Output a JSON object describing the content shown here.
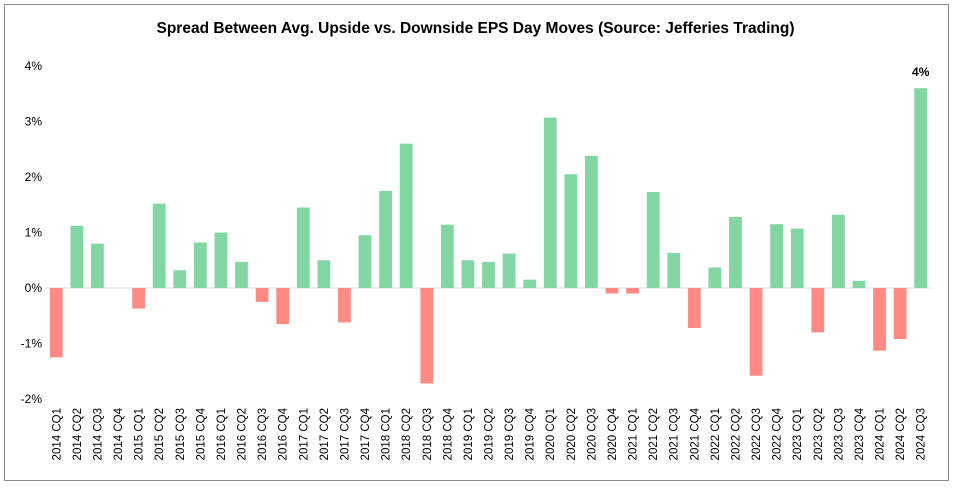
{
  "chart_data": {
    "type": "bar",
    "title": "Spread Between Avg. Upside vs. Downside EPS Day Moves (Source: Jefferies Trading)",
    "xlabel": "",
    "ylabel": "",
    "ylim": [
      -2,
      4
    ],
    "yticks": [
      -2,
      -1,
      0,
      1,
      2,
      3,
      4
    ],
    "ytick_labels": [
      "-2%",
      "-1%",
      "0%",
      "1%",
      "2%",
      "3%",
      "4%"
    ],
    "grid": false,
    "legend": "none",
    "colors": {
      "positive": "#82d6a2",
      "negative": "#ff8a84",
      "zero_line": "#d9d9d9"
    },
    "categories": [
      "2014 CQ1",
      "2014 CQ2",
      "2014 CQ3",
      "2014 CQ4",
      "2015 CQ1",
      "2015 CQ2",
      "2015 CQ3",
      "2015 CQ4",
      "2016 CQ1",
      "2016 CQ2",
      "2016 CQ3",
      "2016 CQ4",
      "2017 CQ1",
      "2017 CQ2",
      "2017 CQ3",
      "2017 CQ4",
      "2018 CQ1",
      "2018 CQ2",
      "2018 CQ3",
      "2018 CQ4",
      "2019 CQ1",
      "2019 CQ2",
      "2019 CQ3",
      "2019 CQ4",
      "2020 CQ1",
      "2020 CQ2",
      "2020 CQ3",
      "2020 CQ4",
      "2021 CQ1",
      "2021 CQ2",
      "2021 CQ3",
      "2021 CQ4",
      "2022 CQ1",
      "2022 CQ2",
      "2022 CQ3",
      "2022 CQ4",
      "2023 CQ1",
      "2023 CQ2",
      "2023 CQ3",
      "2023 CQ4",
      "2024 CQ1",
      "2024 CQ2",
      "2024 CQ3"
    ],
    "values": [
      -1.25,
      1.12,
      0.8,
      0.0,
      -0.37,
      1.52,
      0.32,
      0.82,
      1.0,
      0.47,
      -0.25,
      -0.65,
      1.45,
      0.5,
      -0.62,
      0.95,
      1.75,
      2.6,
      -1.72,
      1.14,
      0.5,
      0.47,
      0.62,
      0.15,
      3.07,
      2.05,
      2.38,
      -0.1,
      -0.1,
      1.73,
      0.63,
      -0.72,
      0.37,
      1.28,
      -1.58,
      1.15,
      1.07,
      -0.8,
      1.32,
      0.13,
      -1.13,
      -0.92,
      3.6
    ],
    "data_labels": [
      {
        "category": "2024 CQ3",
        "text": "4%"
      }
    ]
  }
}
